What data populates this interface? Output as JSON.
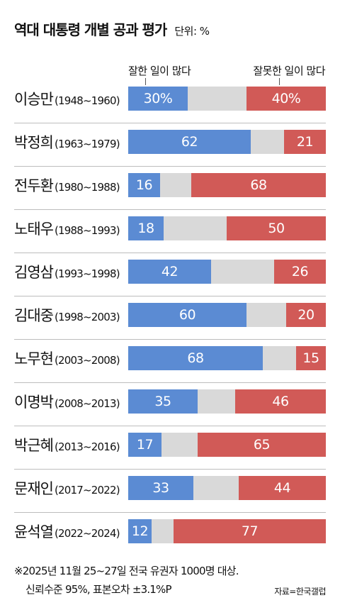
{
  "chart_data": {
    "type": "bar",
    "stacked": true,
    "orientation": "horizontal",
    "title": "역대 대통령 개별 공과 평가",
    "unit": "단위: %",
    "legend_positive": "잘한 일이 많다",
    "legend_negative": "잘못한 일이 많다",
    "colors": {
      "positive": "#5b8bd3",
      "negative": "#d15a57",
      "neutral": "#d9d9d9"
    },
    "xlim": [
      0,
      100
    ],
    "rows": [
      {
        "name": "이승만",
        "period": "(1948~1960)",
        "positive": 30,
        "negative": 40,
        "positive_label": "30%",
        "negative_label": "40%"
      },
      {
        "name": "박정희",
        "period": "(1963~1979)",
        "positive": 62,
        "negative": 21,
        "positive_label": "62",
        "negative_label": "21"
      },
      {
        "name": "전두환",
        "period": "(1980~1988)",
        "positive": 16,
        "negative": 68,
        "positive_label": "16",
        "negative_label": "68"
      },
      {
        "name": "노태우",
        "period": "(1988~1993)",
        "positive": 18,
        "negative": 50,
        "positive_label": "18",
        "negative_label": "50"
      },
      {
        "name": "김영삼",
        "period": "(1993~1998)",
        "positive": 42,
        "negative": 26,
        "positive_label": "42",
        "negative_label": "26"
      },
      {
        "name": "김대중",
        "period": "(1998~2003)",
        "positive": 60,
        "negative": 20,
        "positive_label": "60",
        "negative_label": "20"
      },
      {
        "name": "노무현",
        "period": "(2003~2008)",
        "positive": 68,
        "negative": 15,
        "positive_label": "68",
        "negative_label": "15"
      },
      {
        "name": "이명박",
        "period": "(2008~2013)",
        "positive": 35,
        "negative": 46,
        "positive_label": "35",
        "negative_label": "46"
      },
      {
        "name": "박근혜",
        "period": "(2013~2016)",
        "positive": 17,
        "negative": 65,
        "positive_label": "17",
        "negative_label": "65"
      },
      {
        "name": "문재인",
        "period": "(2017~2022)",
        "positive": 33,
        "negative": 44,
        "positive_label": "33",
        "negative_label": "44"
      },
      {
        "name": "윤석열",
        "period": "(2022~2024)",
        "positive": 12,
        "negative": 77,
        "positive_label": "12",
        "negative_label": "77"
      }
    ]
  },
  "footnote": {
    "line1": "※2025년 11월 25~27일 전국 유권자 1000명 대상.",
    "line2": "신뢰수준 95%, 표본오차 ±3.1%P",
    "source": "자료=한국갤럽"
  }
}
